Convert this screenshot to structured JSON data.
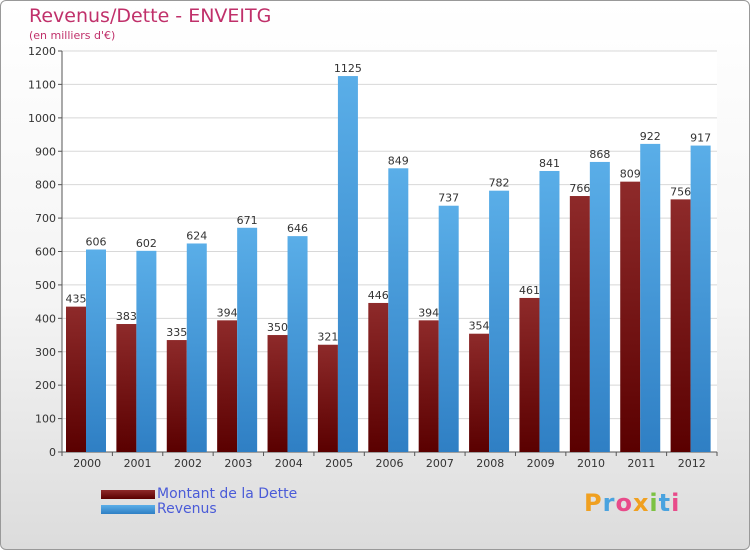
{
  "chart_data": {
    "type": "bar",
    "title": "Revenus/Dette - ENVEITG",
    "subtitle": "(en milliers d'€)",
    "categories": [
      "2000",
      "2001",
      "2002",
      "2003",
      "2004",
      "2005",
      "2006",
      "2007",
      "2008",
      "2009",
      "2010",
      "2011",
      "2012"
    ],
    "series": [
      {
        "name": "Montant de la Dette",
        "color": "#8b1a1a",
        "values": [
          435,
          383,
          335,
          394,
          350,
          321,
          446,
          394,
          354,
          461,
          766,
          809,
          756
        ]
      },
      {
        "name": "Revenus",
        "color": "#4da6e6",
        "values": [
          606,
          602,
          624,
          671,
          646,
          1125,
          849,
          737,
          782,
          841,
          868,
          922,
          917
        ]
      }
    ],
    "ylim": [
      0,
      1200
    ],
    "yticks": [
      0,
      100,
      200,
      300,
      400,
      500,
      600,
      700,
      800,
      900,
      1000,
      1100,
      1200
    ],
    "grid": true,
    "legend": "bottom-left"
  },
  "brand": {
    "letters": [
      "P",
      "r",
      "o",
      "x",
      "i",
      "t",
      "i"
    ],
    "colors": [
      "#f0a020",
      "#4aa3df",
      "#e84b8a",
      "#f0a020",
      "#7cc242",
      "#4aa3df",
      "#e84b8a"
    ]
  }
}
